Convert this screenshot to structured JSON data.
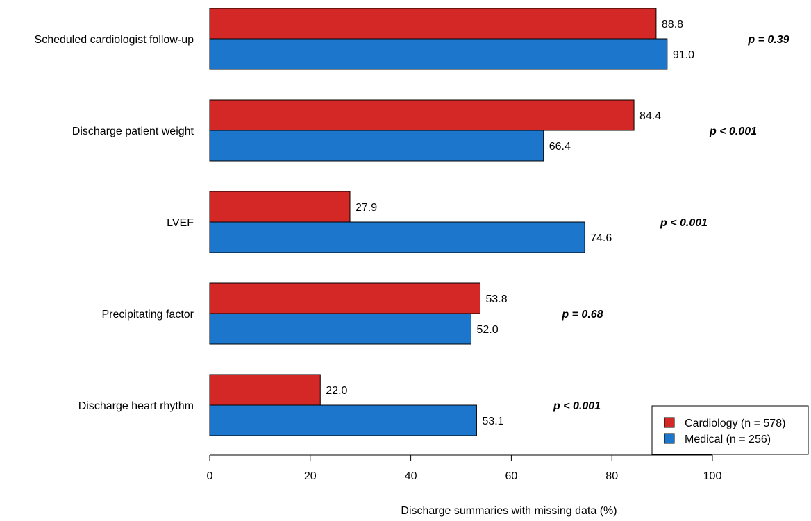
{
  "chart_data": {
    "type": "bar",
    "orientation": "horizontal",
    "categories": [
      "Scheduled cardiologist follow-up",
      "Discharge patient weight",
      "LVEF",
      "Precipitating factor",
      "Discharge heart rhythm"
    ],
    "series": [
      {
        "name": "Cardiology (n = 578)",
        "color": "#d42826",
        "values": [
          88.8,
          84.4,
          27.9,
          53.8,
          22.0
        ],
        "labels": [
          "88.8",
          "84.4",
          "27.9",
          "53.8",
          "22.0"
        ]
      },
      {
        "name": "Medical (n = 256)",
        "color": "#1b76cc",
        "values": [
          91.0,
          66.4,
          74.6,
          52.0,
          53.1
        ],
        "labels": [
          "91.0",
          "66.4",
          "74.6",
          "52.0",
          "53.1"
        ]
      }
    ],
    "p_values": [
      "p = 0.39",
      "p < 0.001",
      "p < 0.001",
      "p = 0.68",
      "p < 0.001"
    ],
    "xlabel": "Discharge summaries with missing data (%)",
    "ylabel": "",
    "title": "",
    "xlim": [
      0,
      100
    ],
    "xticks": [
      "0",
      "20",
      "40",
      "60",
      "80",
      "100"
    ],
    "legend_position": "bottom-right",
    "grid": false
  }
}
